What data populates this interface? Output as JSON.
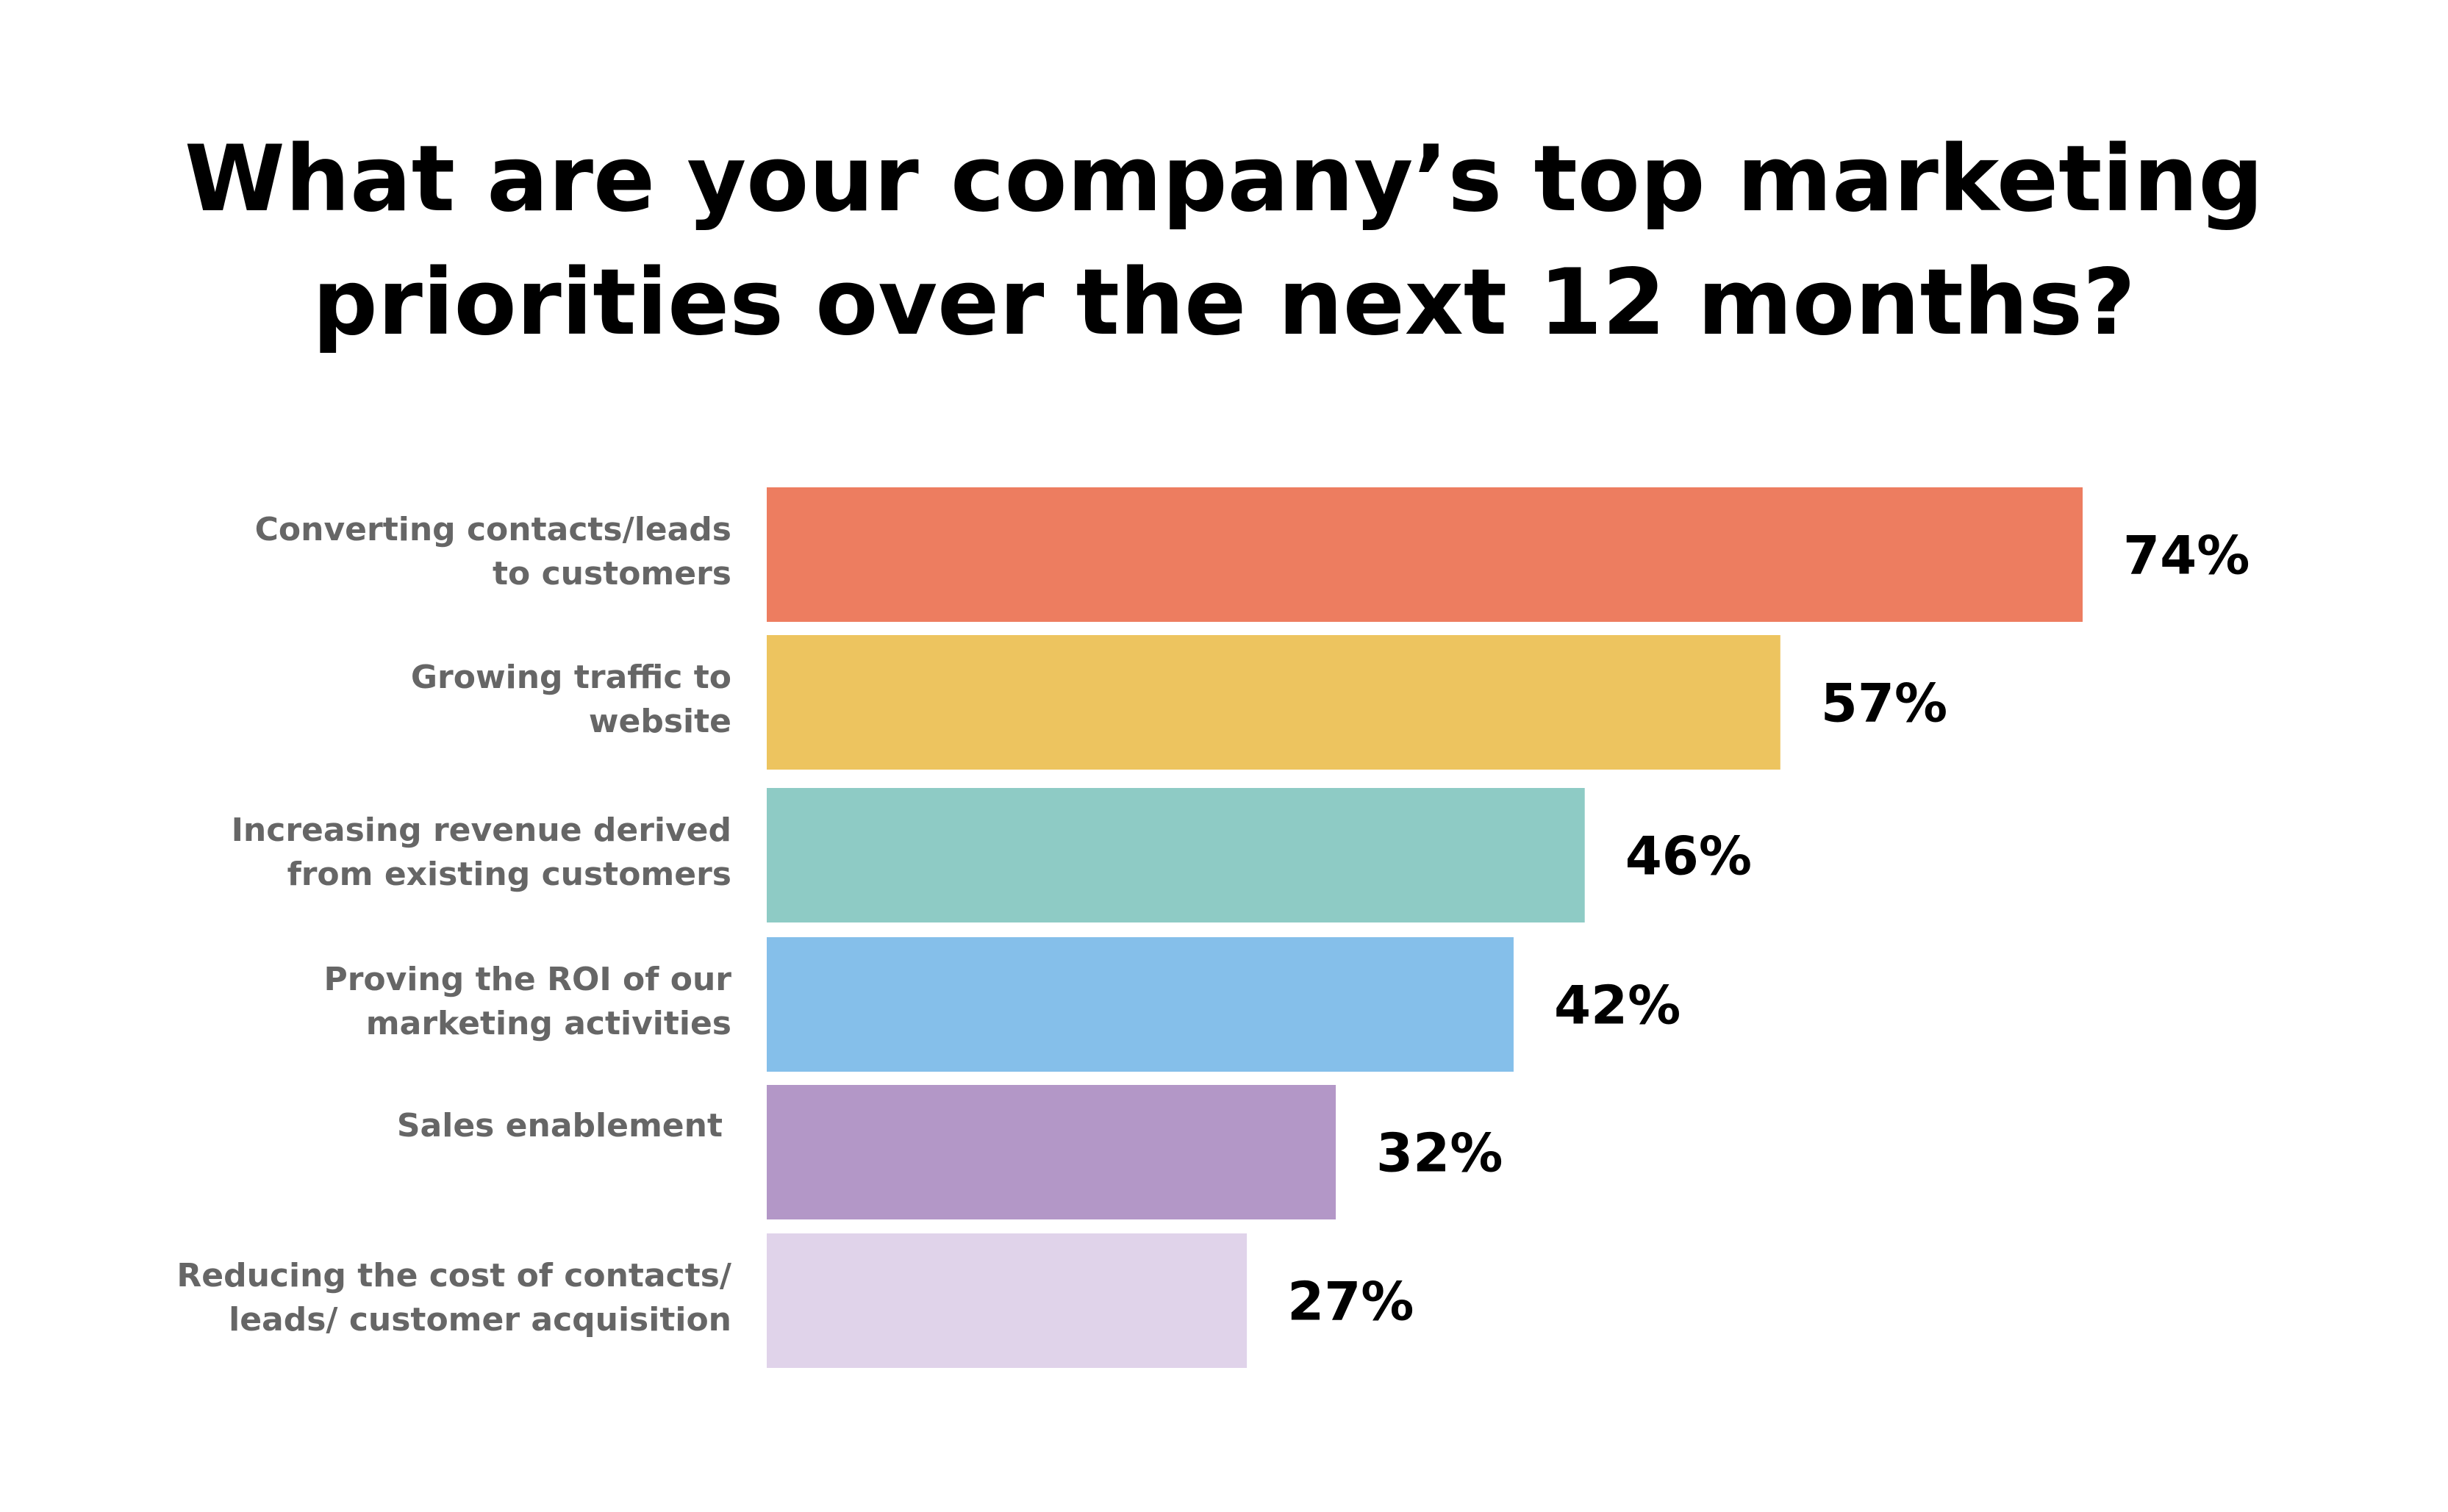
{
  "chart_data": {
    "type": "bar",
    "orientation": "horizontal",
    "title_lines": [
      "What are your company’s top marketing",
      "priorities over the next 12 months?"
    ],
    "categories": [
      [
        "Converting contacts/leads",
        "to customers"
      ],
      [
        "Growing traffic to",
        "website"
      ],
      [
        "Increasing revenue derived",
        "from existing customers"
      ],
      [
        "Proving the ROI of our",
        "marketing activities"
      ],
      [
        "Sales enablement"
      ],
      [
        "Reducing the cost of contacts/",
        "leads/ customer acquisition"
      ]
    ],
    "values": [
      74,
      57,
      46,
      42,
      32,
      27
    ],
    "value_labels": [
      "74%",
      "57%",
      "46%",
      "42%",
      "32%",
      "27%"
    ],
    "colors": [
      "#ED7D60",
      "#EDC45F",
      "#8ECBC5",
      "#85BFEA",
      "#B397C7",
      "#E0D3EA"
    ],
    "xlim": [
      0,
      74
    ],
    "grid": false,
    "legend": "none"
  }
}
